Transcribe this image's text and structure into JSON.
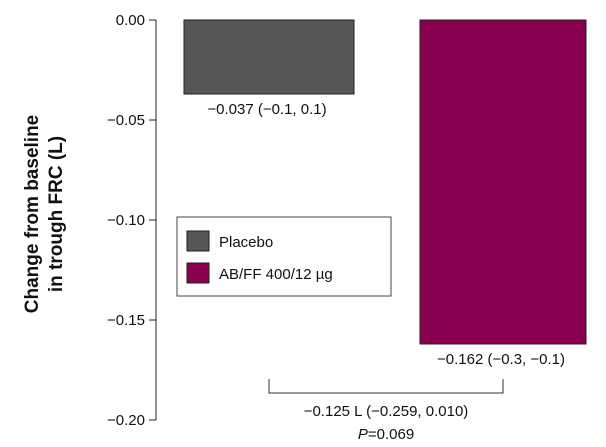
{
  "chart_data": {
    "type": "bar",
    "ylabel_line1": "Change from baseline",
    "ylabel_line2": "in trough FRC (L)",
    "ylim": [
      -0.2,
      0.0
    ],
    "yticks": [
      0.0,
      -0.05,
      -0.1,
      -0.15,
      -0.2
    ],
    "ytick_labels": [
      "0.00",
      "−0.05",
      "−0.10",
      "−0.15",
      "−0.20"
    ],
    "series": [
      {
        "name": "Placebo",
        "value": -0.037,
        "label": "−0.037 (−0.1, 0.1)",
        "color": "#555756"
      },
      {
        "name": "AB/FF 400/12 µg",
        "value": -0.162,
        "label": "−0.162 (−0.3, −0.1)",
        "color": "#8a0050"
      }
    ],
    "legend_placement": "center-left",
    "comparison": {
      "difference_label": "−0.125 L (−0.259, 0.010)",
      "p_prefix": "P",
      "p_suffix": "=0.069"
    }
  }
}
